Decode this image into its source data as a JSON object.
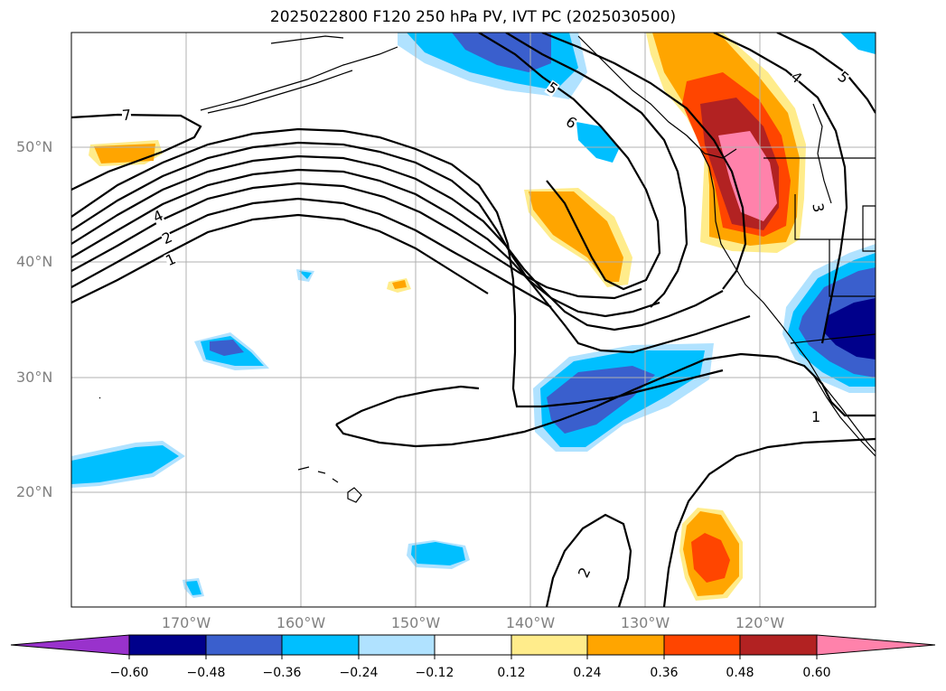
{
  "title": "2025022800 F120 250 hPa PV, IVT PC (2025030500)",
  "lat_labels": [
    "50°N",
    "40°N",
    "30°N",
    "20°N"
  ],
  "lon_labels": [
    "170°W",
    "160°W",
    "150°W",
    "140°W",
    "130°W",
    "120°W"
  ],
  "contour_labels": [
    "7",
    "4",
    "2",
    "1",
    "5",
    "6",
    "4",
    "5",
    "3",
    "1",
    "2"
  ],
  "colorbar": {
    "ticks": [
      "−0.60",
      "−0.48",
      "−0.36",
      "−0.24",
      "−0.12",
      "0.12",
      "0.24",
      "0.36",
      "0.48",
      "0.60"
    ],
    "colors": [
      "#9932cc",
      "#00008b",
      "#3a5fcd",
      "#00bfff",
      "#b0e2ff",
      "#ffffff",
      "#ffec8b",
      "#ffa500",
      "#ff4500",
      "#b22222",
      "#ff82ab"
    ]
  }
}
